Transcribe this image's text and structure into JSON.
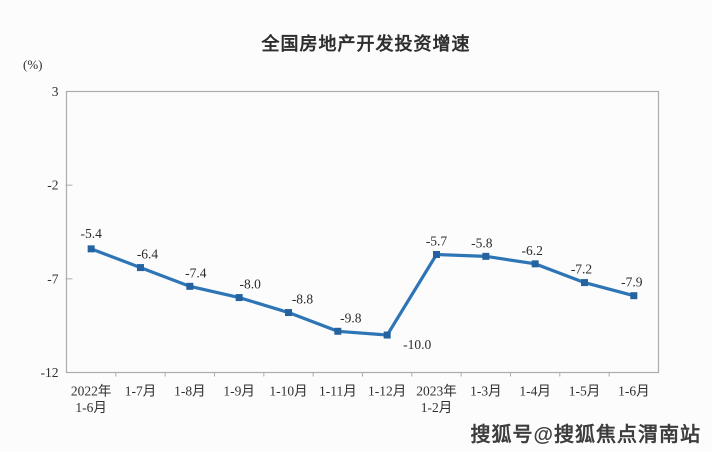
{
  "chart_data": {
    "type": "line",
    "title": "全国房地产开发投资增速",
    "unit_label": "(%)",
    "categories": [
      "2022年\n1-6月",
      "1-7月",
      "1-8月",
      "1-9月",
      "1-10月",
      "1-11月",
      "1-12月",
      "2023年\n1-2月",
      "1-3月",
      "1-4月",
      "1-5月",
      "1-6月"
    ],
    "values": [
      -5.4,
      -6.4,
      -7.4,
      -8.0,
      -8.8,
      -9.8,
      -10.0,
      -5.7,
      -5.8,
      -6.2,
      -7.2,
      -7.9
    ],
    "ylim": [
      -12,
      3
    ],
    "yticks": [
      3,
      -2,
      -7,
      -12
    ],
    "grid": false,
    "legend": "none",
    "colors": {
      "line": "#2E75B6",
      "marker": "#24639F",
      "axis": "#ACACAC",
      "text": "#303030",
      "data_label": "#2B2B2B"
    }
  },
  "watermark": {
    "text": "搜狐号@搜狐焦点渭南站"
  }
}
